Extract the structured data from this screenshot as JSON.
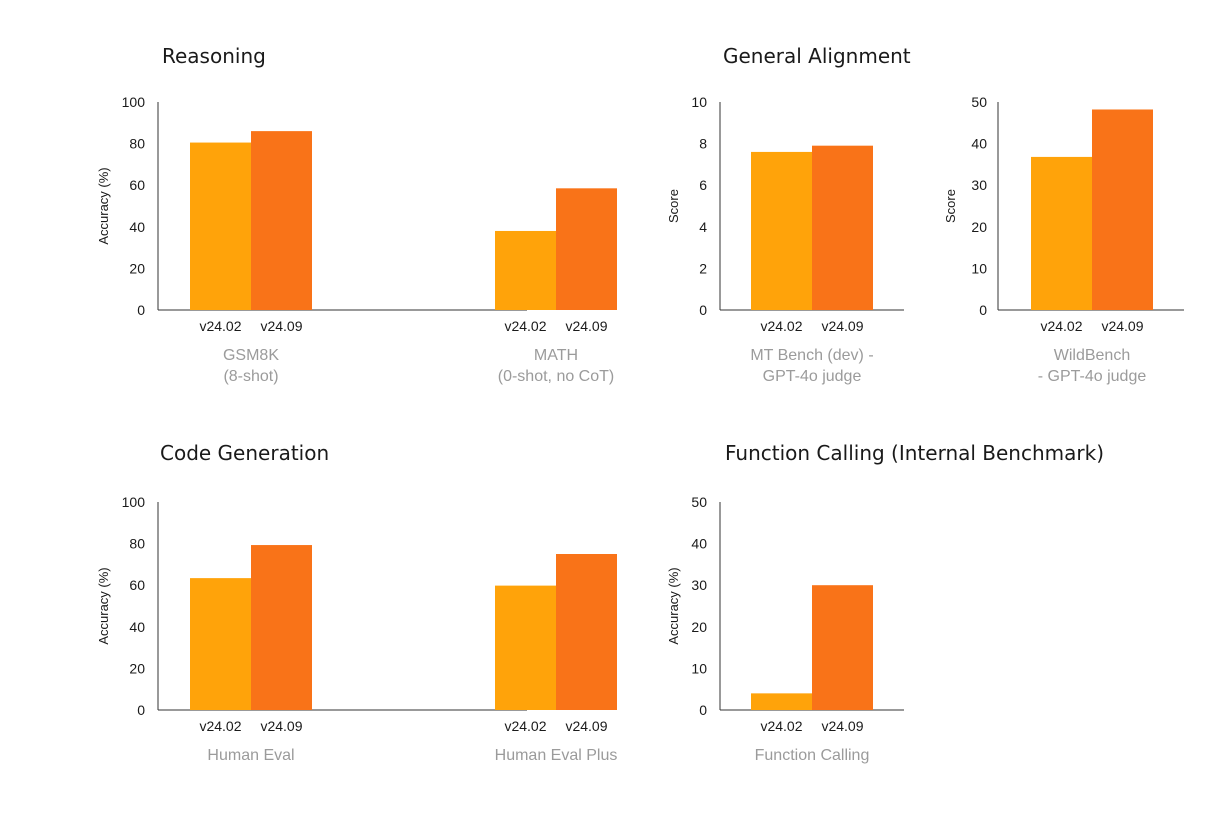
{
  "colors": {
    "v24_02": "#FFA30A",
    "v24_09": "#F97318"
  },
  "sections": [
    {
      "key": "reasoning",
      "title": "Reasoning"
    },
    {
      "key": "alignment",
      "title": "General Alignment"
    },
    {
      "key": "code",
      "title": "Code Generation"
    },
    {
      "key": "function",
      "title": "Function Calling (Internal Benchmark)"
    }
  ],
  "chart_data": [
    {
      "id": "reasoning",
      "type": "bar",
      "ylabel": "Accuracy (%)",
      "ylim": [
        0,
        100
      ],
      "yticks": [
        0,
        20,
        40,
        60,
        80,
        100
      ],
      "groups": [
        {
          "label": [
            "GSM8K",
            "(8-shot)"
          ],
          "bars": [
            {
              "name": "v24.02",
              "value": 80.5
            },
            {
              "name": "v24.09",
              "value": 86
            }
          ]
        },
        {
          "label": [
            "MATH",
            "(0-shot, no CoT)"
          ],
          "bars": [
            {
              "name": "v24.02",
              "value": 38
            },
            {
              "name": "v24.09",
              "value": 58.5
            }
          ]
        }
      ]
    },
    {
      "id": "mtbench",
      "type": "bar",
      "ylabel": "Score",
      "ylim": [
        0,
        10
      ],
      "yticks": [
        0,
        2,
        4,
        6,
        8,
        10
      ],
      "groups": [
        {
          "label": [
            "MT Bench (dev) -",
            "GPT-4o judge"
          ],
          "bars": [
            {
              "name": "v24.02",
              "value": 7.6
            },
            {
              "name": "v24.09",
              "value": 7.9
            }
          ]
        }
      ]
    },
    {
      "id": "wildbench",
      "type": "bar",
      "ylabel": "Score",
      "ylim": [
        0,
        50
      ],
      "yticks": [
        0,
        10,
        20,
        30,
        40,
        50
      ],
      "groups": [
        {
          "label": [
            "WildBench",
            "- GPT-4o judge"
          ],
          "bars": [
            {
              "name": "v24.02",
              "value": 36.8
            },
            {
              "name": "v24.09",
              "value": 48.2
            }
          ]
        }
      ]
    },
    {
      "id": "code",
      "type": "bar",
      "ylabel": "Accuracy (%)",
      "ylim": [
        0,
        100
      ],
      "yticks": [
        0,
        20,
        40,
        60,
        80,
        100
      ],
      "groups": [
        {
          "label": [
            "Human Eval"
          ],
          "bars": [
            {
              "name": "v24.02",
              "value": 63.4
            },
            {
              "name": "v24.09",
              "value": 79.3
            }
          ]
        },
        {
          "label": [
            "Human Eval Plus"
          ],
          "bars": [
            {
              "name": "v24.02",
              "value": 59.8
            },
            {
              "name": "v24.09",
              "value": 75
            }
          ]
        }
      ]
    },
    {
      "id": "function",
      "type": "bar",
      "ylabel": "Accuracy (%)",
      "ylim": [
        0,
        50
      ],
      "yticks": [
        0,
        10,
        20,
        30,
        40,
        50
      ],
      "groups": [
        {
          "label": [
            "Function Calling"
          ],
          "bars": [
            {
              "name": "v24.02",
              "value": 4
            },
            {
              "name": "v24.09",
              "value": 30
            }
          ]
        }
      ]
    }
  ]
}
